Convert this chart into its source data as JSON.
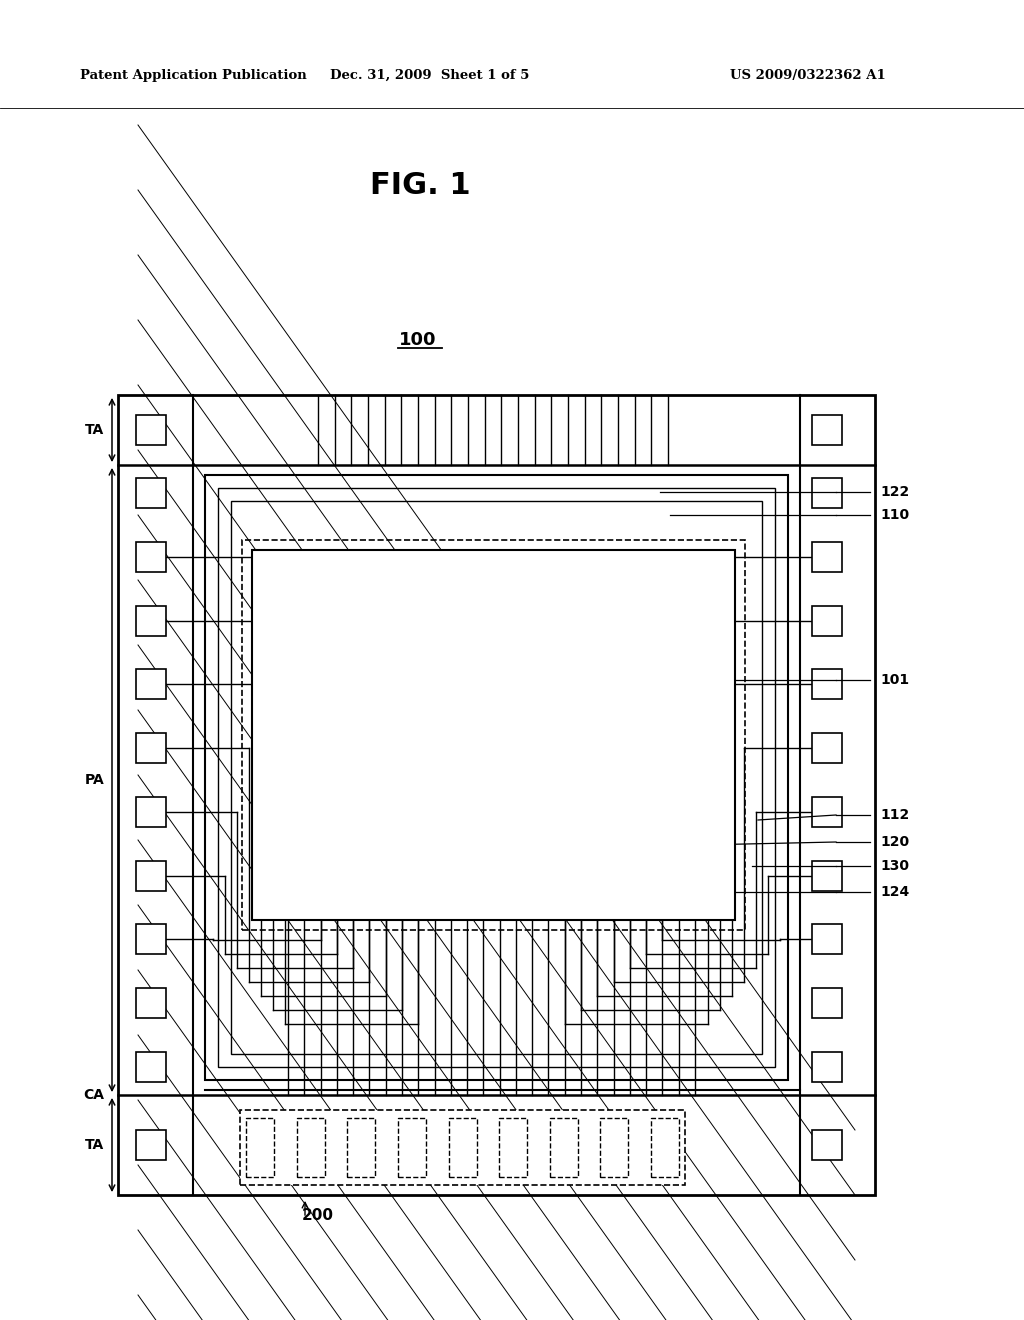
{
  "header_left": "Patent Application Publication",
  "header_center": "Dec. 31, 2009  Sheet 1 of 5",
  "header_right": "US 2009/0322362 A1",
  "fig_title": "FIG. 1",
  "label_100": "100",
  "label_200": "200",
  "label_TA_top": "TA",
  "label_PA": "PA",
  "label_CA": "CA",
  "label_TA_bot": "TA",
  "label_122": "122",
  "label_110": "110",
  "label_101": "101",
  "label_112": "112",
  "label_120": "120",
  "label_130": "130",
  "label_124": "124",
  "bg_color": "#ffffff",
  "lc": "#000000"
}
